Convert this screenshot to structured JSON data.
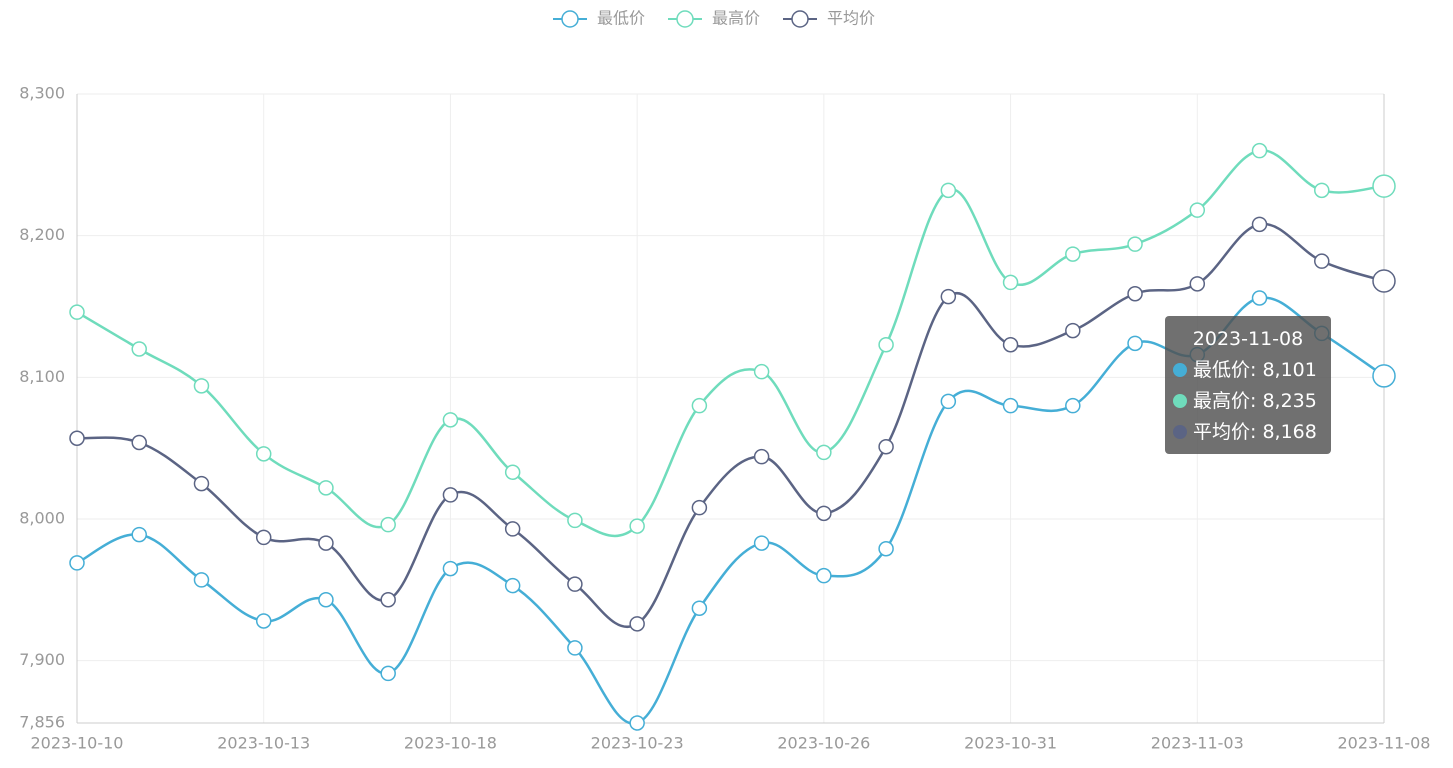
{
  "chart_data": {
    "type": "line",
    "categories": [
      "2023-10-10",
      null,
      null,
      "2023-10-13",
      null,
      null,
      "2023-10-18",
      null,
      null,
      "2023-10-23",
      null,
      null,
      "2023-10-26",
      null,
      null,
      "2023-10-31",
      null,
      null,
      "2023-11-03",
      null,
      null,
      "2023-11-08"
    ],
    "series": [
      {
        "name": "最低价",
        "color": "#45aed6",
        "values": [
          7969,
          7989,
          7957,
          7928,
          7943,
          7891,
          7965,
          7953,
          7909,
          7856,
          7937,
          7983,
          7960,
          7979,
          8083,
          8080,
          8080,
          8124,
          8116,
          8156,
          8131,
          8101
        ]
      },
      {
        "name": "最高价",
        "color": "#6fdcbc",
        "values": [
          8146,
          8120,
          8094,
          8046,
          8022,
          7996,
          8070,
          8033,
          7999,
          7995,
          8080,
          8104,
          8047,
          8123,
          8232,
          8167,
          8187,
          8194,
          8218,
          8260,
          8232,
          8235
        ]
      },
      {
        "name": "平均价",
        "color": "#5b6484",
        "values": [
          8057,
          8054,
          8025,
          7987,
          7983,
          7943,
          8017,
          7993,
          7954,
          7926,
          8008,
          8044,
          8004,
          8051,
          8157,
          8123,
          8133,
          8159,
          8166,
          8208,
          8182,
          8168
        ]
      }
    ],
    "ylim": [
      7856,
      8300
    ],
    "yticks": [
      {
        "value": 7856,
        "label": "7,856"
      },
      {
        "value": 7900,
        "label": "7,900"
      },
      {
        "value": 8000,
        "label": "8,000"
      },
      {
        "value": 8100,
        "label": "8,100"
      },
      {
        "value": 8200,
        "label": "8,200"
      },
      {
        "value": 8300,
        "label": "8,300"
      }
    ],
    "grid": true,
    "legend": "top",
    "tooltip": {
      "index": 21,
      "rows": [
        "最低价: 8,101",
        "最高价: 8,235",
        "平均价: 8,168"
      ]
    }
  }
}
